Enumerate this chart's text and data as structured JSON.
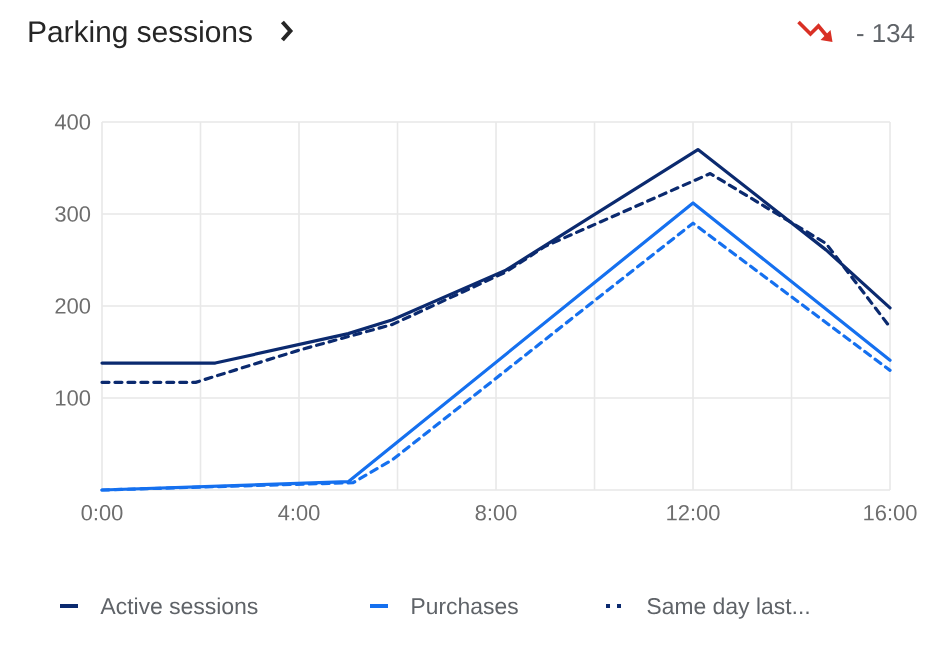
{
  "chart_data": {
    "type": "line",
    "title": "Parking sessions",
    "annotations": [
      "- 134"
    ],
    "xlim": [
      0,
      16
    ],
    "ylim": [
      0,
      400
    ],
    "xticks": [
      {
        "value": 0,
        "label": "0:00"
      },
      {
        "value": 2,
        "label": null
      },
      {
        "value": 4,
        "label": "4:00"
      },
      {
        "value": 6,
        "label": null
      },
      {
        "value": 8,
        "label": "8:00"
      },
      {
        "value": 10,
        "label": null
      },
      {
        "value": 12,
        "label": "12:00"
      },
      {
        "value": 14,
        "label": null
      },
      {
        "value": 16,
        "label": "16:00"
      }
    ],
    "yticks": [
      {
        "value": 0,
        "label": null
      },
      100,
      200,
      300,
      400
    ],
    "grid": true,
    "legend": "bottom",
    "marker": "none",
    "series": [
      {
        "name": "Active sessions",
        "color": "#0b2a6f",
        "line_style": "solid",
        "x": [
          0,
          2.3,
          5.0,
          5.9,
          8.2,
          12.1,
          14.7,
          16
        ],
        "values": [
          138,
          138,
          170,
          185,
          239,
          370,
          261,
          198
        ]
      },
      {
        "name": "Purchases",
        "color": "#1570ef",
        "line_style": "solid",
        "x": [
          0,
          5.0,
          12.0,
          16
        ],
        "values": [
          0,
          9,
          312,
          141
        ]
      },
      {
        "name": "Same day last...",
        "color": "#0b2a6f",
        "line_style": "dashed",
        "x": [
          0,
          1.9,
          4.0,
          5.9,
          8.2,
          9.0,
          12.35,
          14.7,
          16
        ],
        "values": [
          117,
          117,
          152,
          180,
          237,
          265,
          344,
          268,
          177
        ]
      },
      {
        "color": "#1570ef",
        "line_style": "dashed",
        "x": [
          0,
          5.1,
          5.9,
          12.0,
          16
        ],
        "values": [
          0,
          8,
          33,
          290,
          130
        ]
      }
    ]
  }
}
